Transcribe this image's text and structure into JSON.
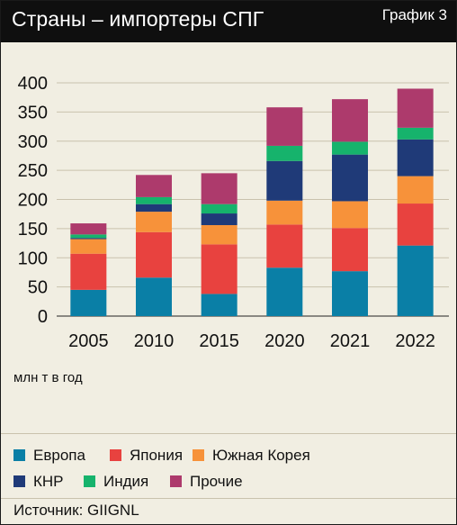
{
  "header": {
    "title": "Страны – импортеры СПГ",
    "figure_label": "График 3"
  },
  "unit_label": "млн т в год",
  "source": "Источник: GIIGNL",
  "colors": {
    "Европа": "#0a7fa6",
    "Япония": "#e8423f",
    "Южная Корея": "#f7923a",
    "КНР": "#1f3a78",
    "Индия": "#16b36c",
    "Прочие": "#ad3a6c"
  },
  "chart_data": {
    "type": "bar",
    "stacked": true,
    "categories": [
      "2005",
      "2010",
      "2015",
      "2020",
      "2021",
      "2022"
    ],
    "series": [
      {
        "name": "Европа",
        "values": [
          45,
          66,
          38,
          83,
          77,
          121
        ]
      },
      {
        "name": "Япония",
        "values": [
          62,
          78,
          85,
          74,
          74,
          72
        ]
      },
      {
        "name": "Южная Корея",
        "values": [
          25,
          35,
          33,
          41,
          46,
          47
        ]
      },
      {
        "name": "КНР",
        "values": [
          2,
          13,
          20,
          68,
          80,
          63
        ]
      },
      {
        "name": "Индия",
        "values": [
          6,
          12,
          16,
          26,
          22,
          20
        ]
      },
      {
        "name": "Прочие",
        "values": [
          19,
          38,
          53,
          66,
          73,
          67
        ]
      }
    ],
    "ylim": [
      0,
      400
    ],
    "yticks": [
      "0",
      "50",
      "100",
      "150",
      "200",
      "250",
      "300",
      "350",
      "400"
    ],
    "grid": true,
    "legend_position": "bottom"
  }
}
